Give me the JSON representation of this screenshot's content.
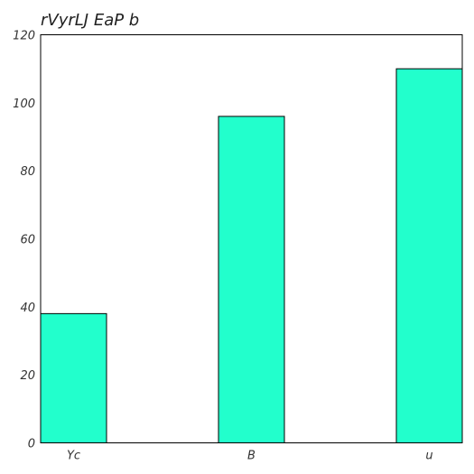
{
  "chart_data": {
    "type": "bar",
    "title": "rVyrLJ EaP b",
    "xlabel": "",
    "ylabel": "",
    "categories": [
      "Yc",
      "B",
      "u"
    ],
    "values": [
      38,
      96,
      110
    ],
    "ylim": [
      0,
      120
    ],
    "yticks": [
      0,
      20,
      40,
      60,
      80,
      100,
      120
    ],
    "ytick_labels": [
      "0",
      "20",
      "40",
      "60",
      "80",
      "100",
      "120"
    ],
    "bar_color": "#22FFCC",
    "grid": false
  }
}
